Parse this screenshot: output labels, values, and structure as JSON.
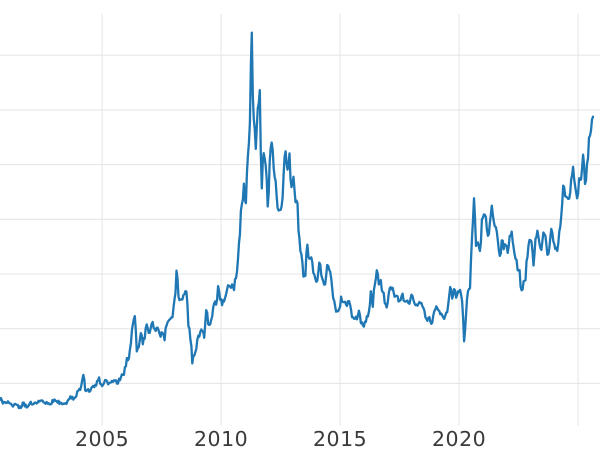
{
  "chart_data": {
    "type": "line",
    "title": "",
    "xlabel": "",
    "ylabel": "",
    "legend": "none",
    "grid": "on",
    "background_color": "#ffffff",
    "line_color": "#1f77b4",
    "grid_color": "#e6e6e6",
    "tick_label_color": "#3a3a3a",
    "xlim": [
      2000.71,
      2025.92
    ],
    "ylim": [
      1.9,
      50.8
    ],
    "x_ticks": [
      {
        "year": 2005,
        "label": "2005"
      },
      {
        "year": 2010,
        "label": "2010"
      },
      {
        "year": 2015,
        "label": "2015"
      },
      {
        "year": 2020,
        "label": "2020"
      }
    ],
    "x_gridline_years": [
      2005,
      2010,
      2015,
      2020,
      2025
    ],
    "y_gridline_values": [
      6.9,
      13.4,
      19.9,
      26.4,
      32.9,
      39.4,
      45.9
    ],
    "series_start_year": 2000,
    "series_start_month": 9,
    "points_per_year": 12,
    "values": [
      4.95,
      4.85,
      4.7,
      4.57,
      4.77,
      4.52,
      4.33,
      4.33,
      4.42,
      4.35,
      4.18,
      4.15,
      4.62,
      4.38,
      4.12,
      4.52,
      4.41,
      4.45,
      4.62,
      4.6,
      4.75,
      4.88,
      4.63,
      4.48,
      4.5,
      4.41,
      4.45,
      4.73,
      4.85,
      4.62,
      4.45,
      4.55,
      4.52,
      4.55,
      4.78,
      5.05,
      5.12,
      4.98,
      5.25,
      5.96,
      6.25,
      6.65,
      7.91,
      6.07,
      6.12,
      5.92,
      6.33,
      6.62,
      6.7,
      7.2,
      7.62,
      6.81,
      6.72,
      7.31,
      7.15,
      6.92,
      7.02,
      7.08,
      7.22,
      6.87,
      7.46,
      7.62,
      7.92,
      8.83,
      9.92,
      9.86,
      11.66,
      13.91,
      14.9,
      10.7,
      11.22,
      12.88,
      11.55,
      12.21,
      13.91,
      12.9,
      13.45,
      14.2,
      13.35,
      13.51,
      13.21,
      12.45,
      12.89,
      12.02,
      13.79,
      14.34,
      14.58,
      14.76,
      16.89,
      20.3,
      17.23,
      16.86,
      16.87,
      17.5,
      17.82,
      13.71,
      12.11,
      9.28,
      10.2,
      11.0,
      12.57,
      13.01,
      13.11,
      12.32,
      15.61,
      13.94,
      13.92,
      14.86,
      16.45,
      16.26,
      18.47,
      16.85,
      16.2,
      16.65,
      17.5,
      18.56,
      18.41,
      18.67,
      17.99,
      19.4,
      21.71,
      24.56,
      28.21,
      30.63,
      28.32,
      33.93,
      37.87,
      48.58,
      38.29,
      34.78,
      39.63,
      41.76,
      30.08,
      34.26,
      32.8,
      27.92,
      33.26,
      35.53,
      32.48,
      31.01,
      27.75,
      27.51,
      27.94,
      31.69,
      34.49,
      32.31,
      34.23,
      30.23,
      31.45,
      28.44,
      28.32,
      24.17,
      22.24,
      19.6,
      19.69,
      23.39,
      21.71,
      21.88,
      20.04,
      19.37,
      19.12,
      21.26,
      19.75,
      19.04,
      18.68,
      20.97,
      20.41,
      19.39,
      17.01,
      16.11,
      15.51,
      15.73,
      17.21,
      16.56,
      16.6,
      16.11,
      16.7,
      15.68,
      14.77,
      14.59,
      14.52,
      15.54,
      14.06,
      13.8,
      14.24,
      14.9,
      15.44,
      17.85,
      15.99,
      18.62,
      20.34,
      18.66,
      19.18,
      17.76,
      16.48,
      15.92,
      17.54,
      18.33,
      18.25,
      17.19,
      17.31,
      16.63,
      16.8,
      17.56,
      16.66,
      16.72,
      16.42,
      16.94,
      17.29,
      16.41,
      16.27,
      16.35,
      16.44,
      16.06,
      15.54,
      14.55,
      14.71,
      14.27,
      14.14,
      15.5,
      16.06,
      15.6,
      15.11,
      14.99,
      14.57,
      15.31,
      16.26,
      18.36,
      16.98,
      18.11,
      17.09,
      17.85,
      18.01,
      16.67,
      11.9,
      14.96,
      17.87,
      18.21,
      24.22,
      28.9,
      23.24,
      23.66,
      22.64,
      26.4,
      26.99,
      26.67,
      24.44,
      25.92,
      28.03,
      26.13,
      25.49,
      23.91,
      22.05,
      23.9,
      22.85,
      23.33,
      22.41,
      24.43,
      24.94,
      23.06,
      21.69,
      20.35,
      20.37,
      17.97,
      19.03,
      19.15,
      21.94,
      23.96,
      23.74,
      20.91,
      24.1,
      25.05,
      23.56,
      22.77,
      24.84,
      24.44,
      22.18,
      22.93,
      25.26,
      23.8,
      22.88,
      22.65,
      24.96,
      26.73,
      30.41,
      29.14,
      28.99,
      28.86,
      31.16,
      32.64,
      30.38,
      28.9,
      31.28,
      31.15,
      34.09,
      30.6,
      32.98,
      36.11,
      36.95,
      38.6
    ]
  }
}
